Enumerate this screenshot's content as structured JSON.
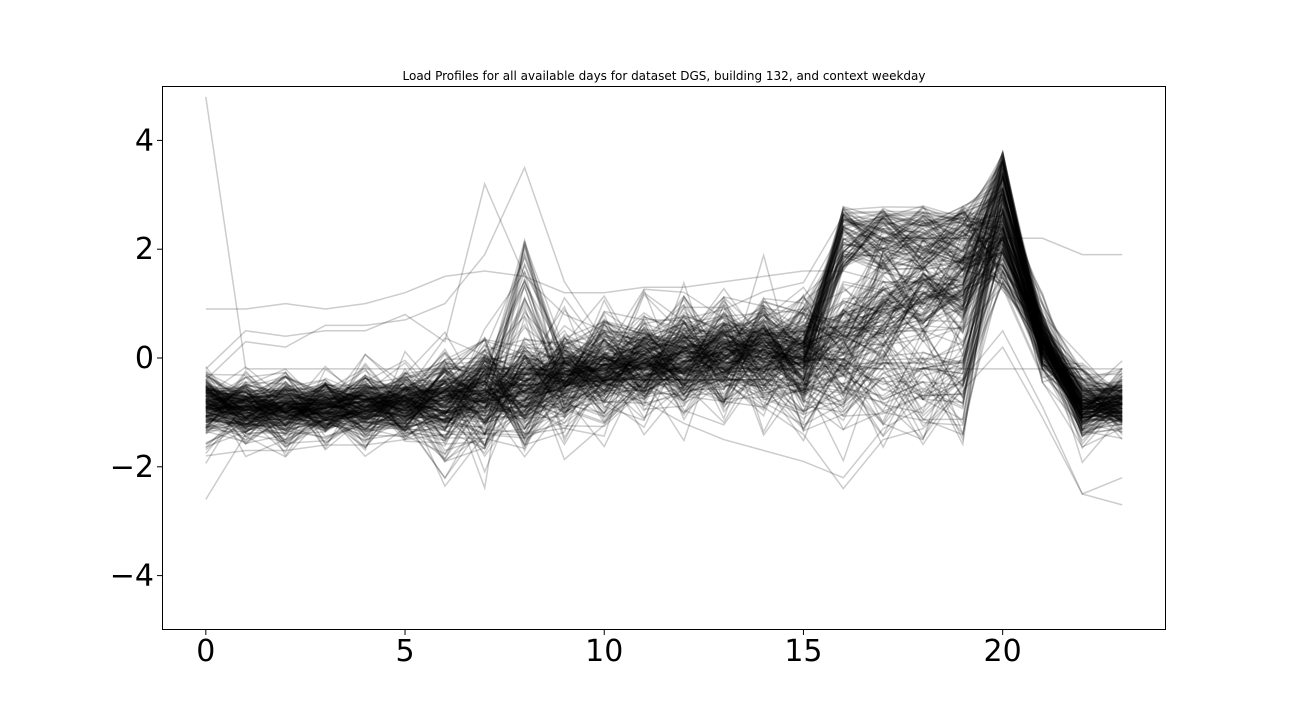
{
  "chart_data": {
    "type": "line",
    "title": "Load Profiles for all available days for dataset DGS, building 132, and context weekday",
    "xlabel": "",
    "ylabel": "",
    "xlim": [
      -1.1,
      24.1
    ],
    "ylim": [
      -5,
      5
    ],
    "xticks": [
      0,
      5,
      10,
      15,
      20
    ],
    "yticks": [
      -4,
      -2,
      0,
      2,
      4
    ],
    "xtick_labels": [
      "0",
      "5",
      "10",
      "15",
      "20"
    ],
    "ytick_labels": [
      "−4",
      "−2",
      "0",
      "2",
      "4"
    ],
    "x": [
      0,
      1,
      2,
      3,
      4,
      5,
      6,
      7,
      8,
      9,
      10,
      11,
      12,
      13,
      14,
      15,
      16,
      17,
      18,
      19,
      20,
      21,
      22,
      23
    ],
    "grid": false,
    "legend": "none",
    "line_color": "#000000",
    "line_opacity": 0.2,
    "series_count": 260,
    "series": [
      {
        "values": [
          4.8,
          -0.2,
          -0.2,
          -0.2,
          -0.2,
          -0.2,
          -0.2,
          -0.2,
          -0.2,
          -0.2,
          -0.2,
          -0.2,
          -0.2,
          -0.2,
          -0.2,
          -0.2,
          -0.2,
          -0.2,
          -0.2,
          -0.2,
          -0.2,
          -0.2,
          -0.2,
          -0.2
        ]
      },
      {
        "values": [
          -0.8,
          -0.9,
          -0.9,
          -0.9,
          -0.9,
          -0.9,
          -0.9,
          -0.9,
          -0.8,
          -0.5,
          -0.4,
          -0.4,
          -0.4,
          -0.4,
          -0.4,
          -0.5,
          0.9,
          2.2,
          2.2,
          2.2,
          2.2,
          0.3,
          -1.0,
          -0.7
        ]
      },
      {
        "values": [
          -0.9,
          -0.9,
          -1.0,
          -1.0,
          -1.0,
          -0.9,
          -0.9,
          -0.9,
          -0.9,
          -0.5,
          -0.4,
          -0.4,
          -0.4,
          -0.4,
          -0.4,
          -0.4,
          0.8,
          2.1,
          2.2,
          2.2,
          2.1,
          0.2,
          -0.9,
          -0.8
        ]
      },
      {
        "values": [
          -0.6,
          -0.6,
          -0.6,
          -0.5,
          -0.5,
          -0.5,
          -0.4,
          -0.3,
          -0.3,
          -0.3,
          -0.4,
          -0.4,
          -0.4,
          -0.5,
          -0.5,
          -0.5,
          -0.1,
          -0.1,
          -0.1,
          0.3,
          1.5,
          0.2,
          -0.6,
          -0.6
        ]
      },
      {
        "values": [
          -0.2,
          0.5,
          0.4,
          0.5,
          0.5,
          0.8,
          0.3,
          3.2,
          1.5,
          0.8,
          0.5,
          0.3,
          0.2,
          0.3,
          0.2,
          0.1,
          0.6,
          0.9,
          0.8,
          1.1,
          1.8,
          0.6,
          -0.7,
          -0.5
        ]
      },
      {
        "values": [
          -0.4,
          0.3,
          0.2,
          0.6,
          0.6,
          0.7,
          1.0,
          1.9,
          3.5,
          1.4,
          0.3,
          0.0,
          0.2,
          0.4,
          0.4,
          0.6,
          1.0,
          1.4,
          1.2,
          1.3,
          2.4,
          1.0,
          -0.4,
          -0.2
        ]
      },
      {
        "values": [
          0.9,
          0.9,
          1.0,
          0.9,
          1.0,
          1.2,
          1.5,
          1.6,
          1.5,
          1.2,
          1.2,
          1.3,
          1.3,
          1.4,
          1.5,
          1.6,
          1.6,
          1.4,
          1.4,
          1.8,
          2.2,
          2.2,
          1.9,
          1.9
        ]
      },
      {
        "values": [
          -2.6,
          -1.4,
          -1.3,
          -1.2,
          -1.2,
          -1.1,
          -1.0,
          -1.0,
          -0.9,
          -0.7,
          -0.6,
          -0.6,
          -0.7,
          -0.8,
          -0.9,
          -1.4,
          -2.4,
          -1.5,
          -1.3,
          -0.6,
          0.2,
          -1.1,
          -2.5,
          -2.7
        ]
      },
      {
        "values": [
          -1.8,
          -1.7,
          -1.7,
          -1.6,
          -1.6,
          -1.5,
          -1.4,
          -1.4,
          -1.3,
          -1.0,
          -0.6,
          -0.8,
          -1.2,
          -1.5,
          -1.7,
          -1.9,
          -2.2,
          -1.3,
          -0.9,
          -0.4,
          0.5,
          -0.9,
          -2.5,
          -2.2
        ]
      }
    ]
  }
}
